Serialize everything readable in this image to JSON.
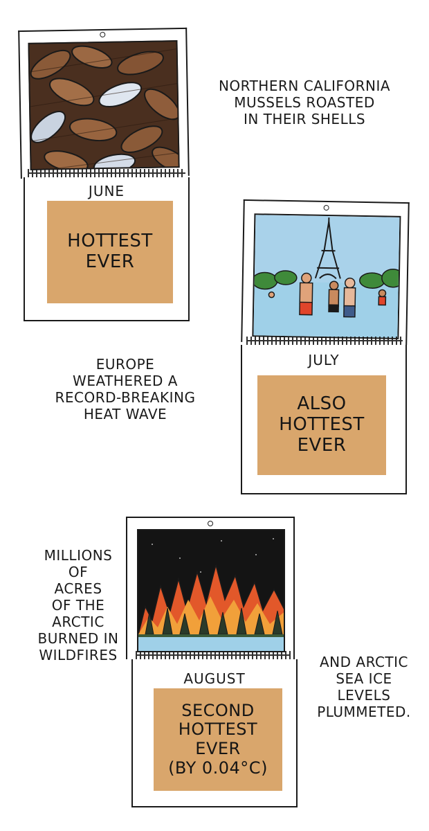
{
  "panels": {
    "june": {
      "month": "JUNE",
      "box": "HOTTEST\nEVER",
      "caption": "NORTHERN CALIFORNIA\nMUSSELS ROASTED\nIN THEIR SHELLS",
      "photo": "mussels-image"
    },
    "july": {
      "month": "JULY",
      "box": "ALSO\nHOTTEST\nEVER",
      "caption": "EUROPE\nWEATHERED A\nRECORD-BREAKING\nHEAT WAVE",
      "photo": "eiffel-tower-swimmers-image"
    },
    "august": {
      "month": "AUGUST",
      "box": "SECOND\nHOTTEST\nEVER\n(BY 0.04°C)",
      "caption_left": "MILLIONS\nOF\nACRES\nOF THE\nARCTIC\nBURNED IN\nWILDFIRES",
      "caption_right": "AND ARCTIC\nSEA ICE\nLEVELS\nPLUMMETED.",
      "photo": "wildfire-image"
    }
  },
  "colors": {
    "box": "#d9a66c",
    "sky": "#a9d2ea",
    "water": "#9fd0e8",
    "fire": "#e2582a",
    "ink": "#1a1a1a"
  }
}
